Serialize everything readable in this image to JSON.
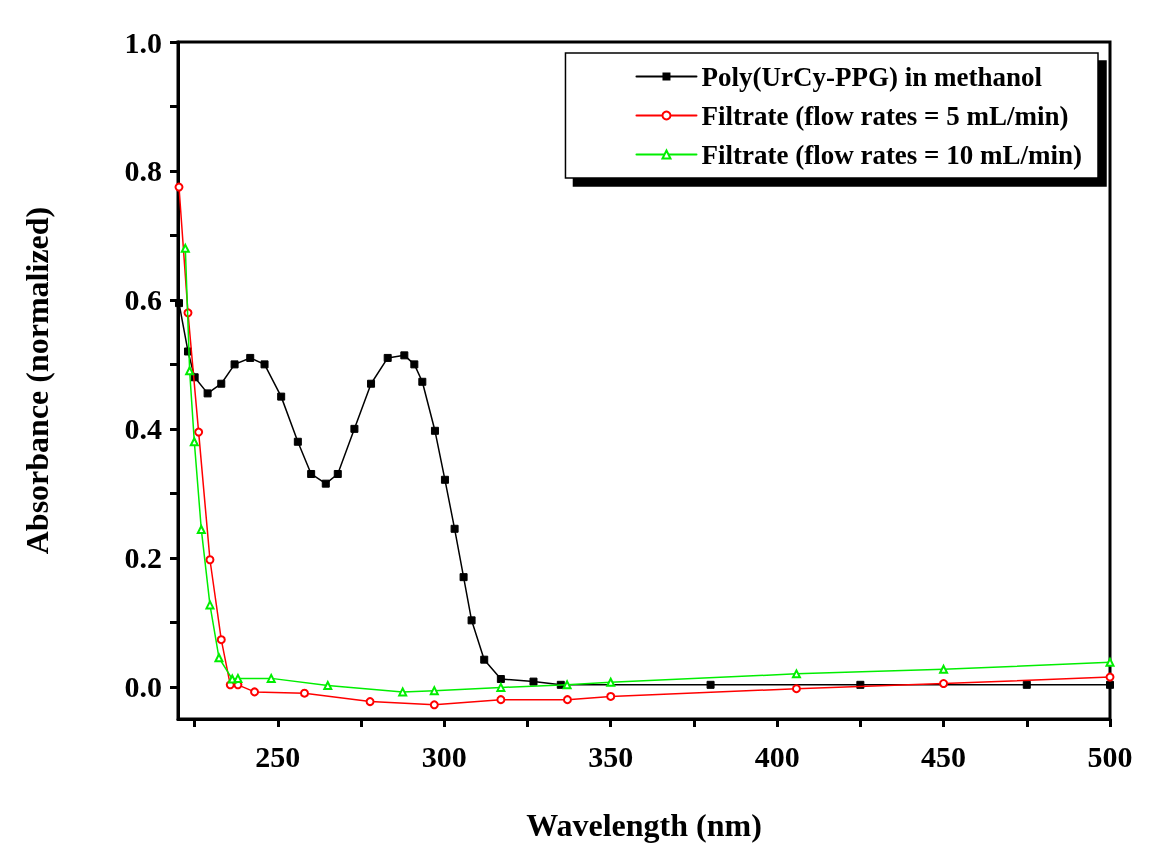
{
  "chart_data": {
    "type": "line",
    "xlabel": "Wavelength (nm)",
    "ylabel": "Absorbance (normalized)",
    "xlim": [
      220,
      500
    ],
    "ylim": [
      -0.05,
      1.0
    ],
    "xticks": [
      {
        "value": 225,
        "label": null
      },
      250,
      {
        "value": 275,
        "label": null
      },
      300,
      {
        "value": 325,
        "label": null
      },
      350,
      {
        "value": 375,
        "label": null
      },
      400,
      {
        "value": 425,
        "label": null
      },
      450,
      {
        "value": 475,
        "label": null
      },
      500
    ],
    "yticks": [
      {
        "value": 0,
        "label": "0.0"
      },
      {
        "value": 0.1,
        "label": null
      },
      0.2,
      {
        "value": 0.3,
        "label": null
      },
      0.4,
      {
        "value": 0.5,
        "label": null
      },
      0.6,
      {
        "value": 0.7,
        "label": null
      },
      0.8,
      {
        "value": 0.9,
        "label": null
      },
      {
        "value": 1.0,
        "label": "1.0"
      }
    ],
    "grid": false,
    "legend": "top right",
    "line_style": "solid",
    "series": [
      {
        "name": "Poly(UrCy-PPG) in methanol",
        "color": "#000000",
        "marker": "square",
        "x": [
          220.3,
          223,
          225,
          228.9,
          233,
          237,
          241.7,
          246,
          251,
          256,
          260,
          264.4,
          268,
          273,
          278,
          283,
          288,
          291,
          293.4,
          297.2,
          300.2,
          303.1,
          305.8,
          308.2,
          312,
          317,
          326.8,
          335,
          380,
          425,
          475,
          500
        ],
        "values": [
          0.595,
          0.52,
          0.48,
          0.455,
          0.47,
          0.5,
          0.51,
          0.5,
          0.45,
          0.38,
          0.33,
          0.315,
          0.33,
          0.4,
          0.47,
          0.51,
          0.514,
          0.5,
          0.473,
          0.397,
          0.321,
          0.245,
          0.17,
          0.103,
          0.042,
          0.012,
          0.008,
          0.003,
          0.003,
          0.003,
          0.003,
          0.003
        ]
      },
      {
        "name": "Filtrate (flow rates = 5 mL/min)",
        "color": "#ff0000",
        "marker": "circle",
        "x": [
          220.3,
          223,
          226.2,
          229.6,
          233,
          235.7,
          238,
          243,
          258,
          277.7,
          297,
          317,
          337,
          350,
          405.8,
          450,
          500
        ],
        "values": [
          0.775,
          0.58,
          0.395,
          0.197,
          0.073,
          0.003,
          0.003,
          -0.008,
          -0.01,
          -0.023,
          -0.028,
          -0.02,
          -0.02,
          -0.015,
          -0.003,
          0.005,
          0.015
        ]
      },
      {
        "name": "Filtrate (flow rates = 10 mL/min)",
        "color": "#00ee00",
        "marker": "triangle",
        "x": [
          222.2,
          223.5,
          224.9,
          227,
          229.6,
          232.3,
          236.3,
          238,
          248,
          265,
          287.5,
          297,
          317,
          336.9,
          350,
          405.8,
          450,
          500
        ],
        "values": [
          0.68,
          0.49,
          0.38,
          0.244,
          0.127,
          0.045,
          0.012,
          0.013,
          0.013,
          0.002,
          -0.008,
          -0.006,
          -0.001,
          0.003,
          0.007,
          0.02,
          0.027,
          0.038
        ]
      }
    ]
  }
}
